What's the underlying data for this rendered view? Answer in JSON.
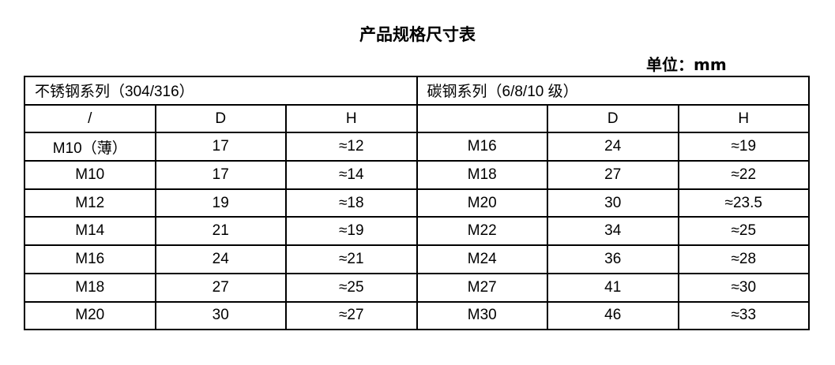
{
  "title": "产品规格尺寸表",
  "unit": "单位：mm",
  "groups": [
    "不锈钢系列（304/316）",
    "碳钢系列（6/8/10 级）"
  ],
  "headers": [
    "/",
    "D",
    "H",
    "",
    "D",
    "H"
  ],
  "rows": [
    [
      "M10（薄）",
      "17",
      "≈12",
      "M16",
      "24",
      "≈19"
    ],
    [
      "M10",
      "17",
      "≈14",
      "M18",
      "27",
      "≈22"
    ],
    [
      "M12",
      "19",
      "≈18",
      "M20",
      "30",
      "≈23.5"
    ],
    [
      "M14",
      "21",
      "≈19",
      "M22",
      "34",
      "≈25"
    ],
    [
      "M16",
      "24",
      "≈21",
      "M24",
      "36",
      "≈28"
    ],
    [
      "M18",
      "27",
      "≈25",
      "M27",
      "41",
      "≈30"
    ],
    [
      "M20",
      "30",
      "≈27",
      "M30",
      "46",
      "≈33"
    ]
  ]
}
